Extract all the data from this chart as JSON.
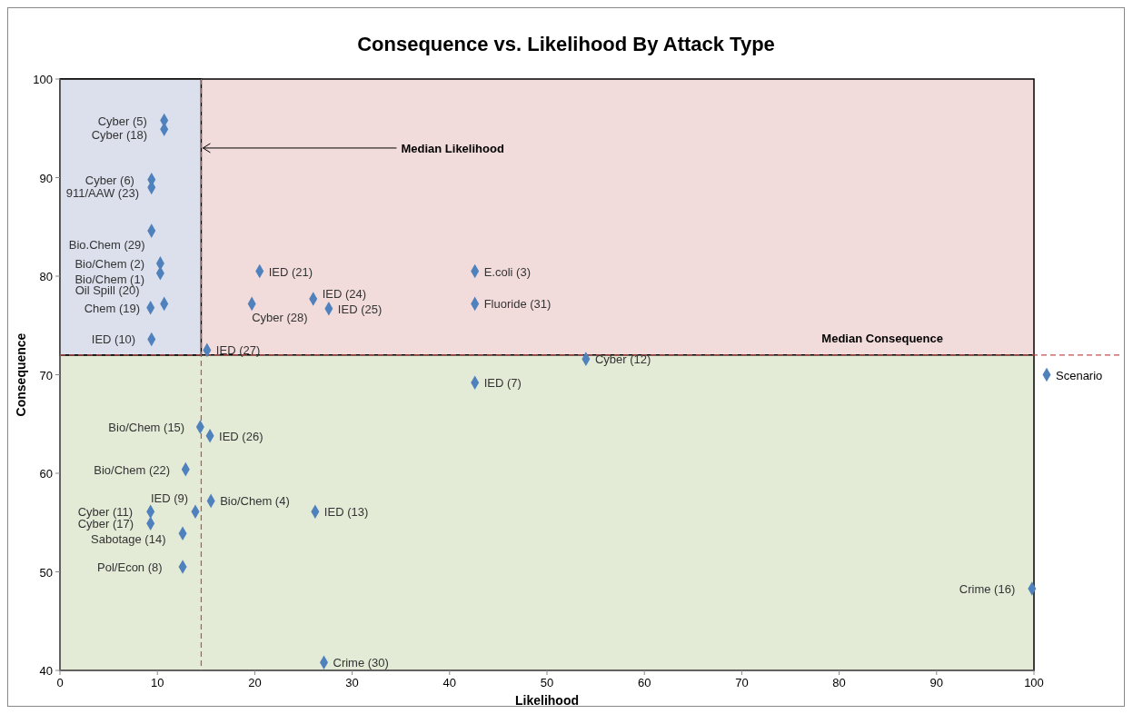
{
  "chart_data": {
    "type": "scatter",
    "title": "Consequence vs. Likelihood By Attack Type",
    "xlabel": "Likelihood",
    "ylabel": "Consequence",
    "xlim": [
      0,
      100
    ],
    "ylim": [
      40,
      100
    ],
    "xticks": [
      0,
      10,
      20,
      30,
      40,
      50,
      60,
      70,
      80,
      90,
      100
    ],
    "yticks": [
      40,
      50,
      60,
      70,
      80,
      90,
      100
    ],
    "grid": false,
    "legend": "right",
    "marker": "diamond",
    "series": [
      {
        "name": "Scenario",
        "color": "#4f81bd",
        "x": [
          10.7,
          10.7,
          9.4,
          9.4,
          9.4,
          10.3,
          10.3,
          10.7,
          9.3,
          9.4,
          15.1,
          20.5,
          19.7,
          26.0,
          27.6,
          42.6,
          42.6,
          54.0,
          42.6,
          14.4,
          15.4,
          12.9,
          15.5,
          13.9,
          26.2,
          9.3,
          9.3,
          12.6,
          12.6,
          99.8,
          27.1
        ],
        "values": [
          95.8,
          94.9,
          89.8,
          89.0,
          84.6,
          81.3,
          80.3,
          77.2,
          76.8,
          73.6,
          72.5,
          80.5,
          77.2,
          77.7,
          76.7,
          80.5,
          77.2,
          71.6,
          69.2,
          64.7,
          63.8,
          60.4,
          57.2,
          56.1,
          56.1,
          56.1,
          54.9,
          53.9,
          50.5,
          48.3,
          40.8
        ]
      }
    ],
    "bands": [
      {
        "axis": "y",
        "from": 72,
        "to": 100,
        "color": "#f2dcdb"
      },
      {
        "axis": "y",
        "from": 40,
        "to": 72,
        "color": "#e3ead6"
      },
      {
        "axis": "x",
        "from": 0,
        "to": 14.5,
        "color": "#dbe0ec"
      }
    ],
    "ref_lines": [
      {
        "axis": "x",
        "value": 14.5,
        "label": "Median Likelihood",
        "color": "#c0504d",
        "line_style": "dashed"
      },
      {
        "axis": "y",
        "value": 72,
        "label": "Median Consequence",
        "color": "#c0504d",
        "line_style": "dashed"
      }
    ],
    "annotations": [
      {
        "text": "Cyber (5)",
        "x": 10.7,
        "y": 95.8
      },
      {
        "text": "Cyber (18)",
        "x": 10.7,
        "y": 94.9
      },
      {
        "text": "Cyber (6)",
        "x": 9.4,
        "y": 89.8
      },
      {
        "text": "911/AAW (23)",
        "x": 9.4,
        "y": 89.0
      },
      {
        "text": "Bio.Chem (29)",
        "x": 9.4,
        "y": 84.6
      },
      {
        "text": "Bio/Chem (2)",
        "x": 10.3,
        "y": 81.3
      },
      {
        "text": "Bio/Chem (1)",
        "x": 10.3,
        "y": 80.3
      },
      {
        "text": "Oil Spill (20)",
        "x": 10.7,
        "y": 77.2
      },
      {
        "text": "Chem (19)",
        "x": 9.3,
        "y": 76.8
      },
      {
        "text": "IED (10)",
        "x": 9.4,
        "y": 73.6
      },
      {
        "text": "IED (27)",
        "x": 15.1,
        "y": 72.5
      },
      {
        "text": "IED (21)",
        "x": 20.5,
        "y": 80.5
      },
      {
        "text": "Cyber (28)",
        "x": 19.7,
        "y": 77.2
      },
      {
        "text": "IED (24)",
        "x": 26.0,
        "y": 77.7
      },
      {
        "text": "IED (25)",
        "x": 27.6,
        "y": 76.7
      },
      {
        "text": "E.coli (3)",
        "x": 42.6,
        "y": 80.5
      },
      {
        "text": "Fluoride (31)",
        "x": 42.6,
        "y": 77.2
      },
      {
        "text": "Cyber (12)",
        "x": 54.0,
        "y": 71.6
      },
      {
        "text": "IED (7)",
        "x": 42.6,
        "y": 69.2
      },
      {
        "text": "Bio/Chem (15)",
        "x": 14.4,
        "y": 64.7
      },
      {
        "text": "IED (26)",
        "x": 15.4,
        "y": 63.8
      },
      {
        "text": "Bio/Chem (22)",
        "x": 12.9,
        "y": 60.4
      },
      {
        "text": "Bio/Chem (4)",
        "x": 15.5,
        "y": 57.2
      },
      {
        "text": "IED (9)",
        "x": 13.9,
        "y": 56.1
      },
      {
        "text": "IED (13)",
        "x": 26.2,
        "y": 56.1
      },
      {
        "text": "Cyber (11)",
        "x": 9.3,
        "y": 56.1
      },
      {
        "text": "Cyber (17)",
        "x": 9.3,
        "y": 54.9
      },
      {
        "text": "Sabotage (14)",
        "x": 12.6,
        "y": 53.9
      },
      {
        "text": "Pol/Econ (8)",
        "x": 12.6,
        "y": 50.5
      },
      {
        "text": "Crime (16)",
        "x": 99.8,
        "y": 48.3
      },
      {
        "text": "Crime (30)",
        "x": 27.1,
        "y": 40.8
      }
    ]
  }
}
